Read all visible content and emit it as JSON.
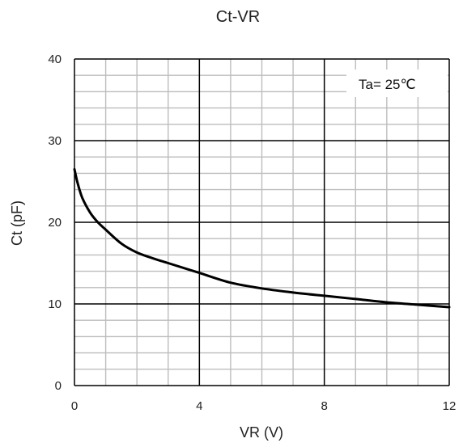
{
  "chart_data": {
    "type": "line",
    "title": "Ct-VR",
    "xlabel": "VR (V)",
    "ylabel": "Ct (pF)",
    "xlim": [
      0,
      12
    ],
    "ylim": [
      0,
      40
    ],
    "xticks": [
      0,
      4,
      8,
      12
    ],
    "yticks": [
      0,
      10,
      20,
      30,
      40
    ],
    "x_minor_step": 1,
    "y_minor_step": 2,
    "grid": true,
    "annotation": "Ta= 25℃",
    "annotation_position": "top-right",
    "line_color": "#000000",
    "series": [
      {
        "x": [
          0,
          0.1,
          0.25,
          0.5,
          0.75,
          1,
          1.5,
          2,
          2.5,
          3,
          4,
          5,
          6,
          7,
          8,
          9,
          10,
          11,
          12
        ],
        "y": [
          26.5,
          24.8,
          23.0,
          21.2,
          20.0,
          19.1,
          17.4,
          16.3,
          15.6,
          15.0,
          13.8,
          12.6,
          11.9,
          11.4,
          11.0,
          10.6,
          10.2,
          9.9,
          9.6
        ]
      }
    ]
  }
}
